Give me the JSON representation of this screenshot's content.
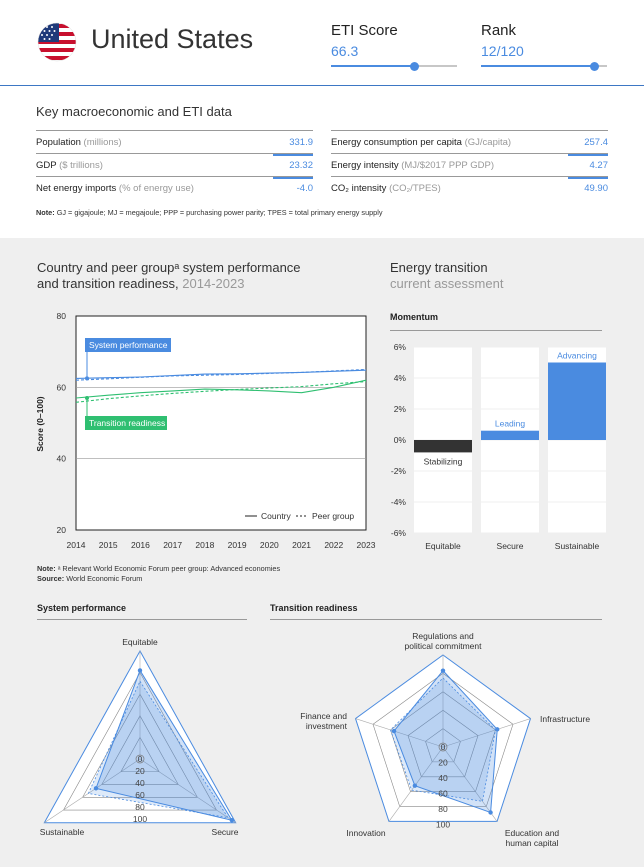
{
  "header": {
    "country": "United States",
    "eti_score_label": "ETI Score",
    "eti_score_value": "66.3",
    "eti_score_fraction": 0.663,
    "rank_label": "Rank",
    "rank_value": "12/120",
    "rank_fraction": 0.9
  },
  "key_data": {
    "title": "Key macroeconomic and ETI data",
    "left": [
      {
        "label": "Population",
        "unit": "(millions)",
        "value": "331.9"
      },
      {
        "label": "GDP",
        "unit": "($ trillions)",
        "value": "23.32"
      },
      {
        "label": "Net energy imports",
        "unit": "(% of energy use)",
        "value": "-4.0"
      }
    ],
    "right": [
      {
        "label": "Energy consumption per capita",
        "unit": "(GJ/capita)",
        "value": "257.4"
      },
      {
        "label": "Energy intensity",
        "unit": "(MJ/$2017 PPP GDP)",
        "value": "4.27"
      },
      {
        "label": "CO₂ intensity",
        "unit": "(CO₂/TPES)",
        "value": "49.90"
      }
    ],
    "note_bold": "Note:",
    "note_text": "GJ = gigajoule; MJ = megajoule; PPP = purchasing power parity; TPES = total primary energy supply"
  },
  "performance_chart": {
    "title_line1": "Country and peer groupᵃ system performance",
    "title_line2": "and transition readiness,",
    "title_years": "2014-2023"
  },
  "transition": {
    "title": "Energy transition",
    "subtitle": "current assessment",
    "momentum_label": "Momentum"
  },
  "notes2": {
    "note_bold": "Note:",
    "note_text": "ᵃ Relevant World Economic Forum peer group: Advanced economies",
    "source_bold": "Source:",
    "source_text": "World Economic Forum"
  },
  "radar_titles": {
    "system": "System performance",
    "transition": "Transition readiness"
  },
  "colors": {
    "blue": "#4a8be0",
    "green": "#2fbf71",
    "dark": "#333333",
    "header_line": "#3d77c4"
  },
  "chart_data": [
    {
      "type": "line",
      "x": [
        2014,
        2015,
        2016,
        2017,
        2018,
        2019,
        2020,
        2021,
        2022,
        2023
      ],
      "xticks": [
        "2014",
        "2015",
        "2016",
        "2017",
        "2018",
        "2019",
        "2020",
        "2021",
        "2022",
        "2023"
      ],
      "ylabel": "Score (0–100)",
      "yticks": [
        "80",
        "60",
        "40",
        "20"
      ],
      "ylim": [
        20,
        80
      ],
      "grid": true,
      "series": [
        {
          "name": "System performance",
          "style": "country",
          "color": "#4a8be0",
          "values": [
            62.5,
            62.7,
            62.9,
            63.3,
            63.7,
            63.8,
            64.0,
            64.2,
            64.5,
            64.8
          ]
        },
        {
          "name": "System performance",
          "style": "peer",
          "color": "#4a8be0",
          "values": [
            62.0,
            62.4,
            62.8,
            63.2,
            63.4,
            63.6,
            63.9,
            64.2,
            64.6,
            65.0
          ]
        },
        {
          "name": "Transition readiness",
          "style": "country",
          "color": "#2fbf71",
          "values": [
            57.0,
            57.8,
            58.5,
            59.0,
            59.5,
            59.3,
            59.0,
            58.5,
            60.0,
            62.0
          ]
        },
        {
          "name": "Transition readiness",
          "style": "peer",
          "color": "#2fbf71",
          "values": [
            55.8,
            56.8,
            57.6,
            58.3,
            58.9,
            59.4,
            59.8,
            60.2,
            61.0,
            61.6
          ]
        }
      ],
      "legend": [
        "Country",
        "Peer group"
      ],
      "legend_position": "bottom-right"
    },
    {
      "type": "bar",
      "categories": [
        "Equitable",
        "Secure",
        "Sustainable"
      ],
      "values": [
        -0.8,
        0.6,
        5.0
      ],
      "bar_labels": [
        "Stabilizing",
        "Leading",
        "Advancing"
      ],
      "bar_colors": [
        "#333333",
        "#4a8be0",
        "#4a8be0"
      ],
      "yticks": [
        "6%",
        "4%",
        "2%",
        "0%",
        "-2%",
        "-4%",
        "-6%"
      ],
      "ylim": [
        -6,
        6
      ]
    },
    {
      "type": "radar",
      "axes": [
        "Equitable",
        "Secure",
        "Sustainable"
      ],
      "scale_labels": [
        "0",
        "20",
        "40",
        "60",
        "80",
        "100"
      ],
      "country": [
        82,
        96,
        46
      ],
      "peer": [
        72,
        92,
        54
      ]
    },
    {
      "type": "radar",
      "axes": [
        "Regulations and political commitment",
        "Infrastructure",
        "Education and human capital",
        "Innovation",
        "Finance and investment"
      ],
      "axis_label_lines": [
        [
          "Regulations and",
          "political commitment"
        ],
        [
          "Infrastructure"
        ],
        [
          "Education and",
          "human capital"
        ],
        [
          "Innovation"
        ],
        [
          "Finance and",
          "investment"
        ]
      ],
      "scale_labels": [
        "0",
        "20",
        "40",
        "60",
        "80",
        "100"
      ],
      "country": [
        83,
        62,
        88,
        52,
        56
      ],
      "peer": [
        75,
        60,
        73,
        58,
        60
      ]
    }
  ]
}
